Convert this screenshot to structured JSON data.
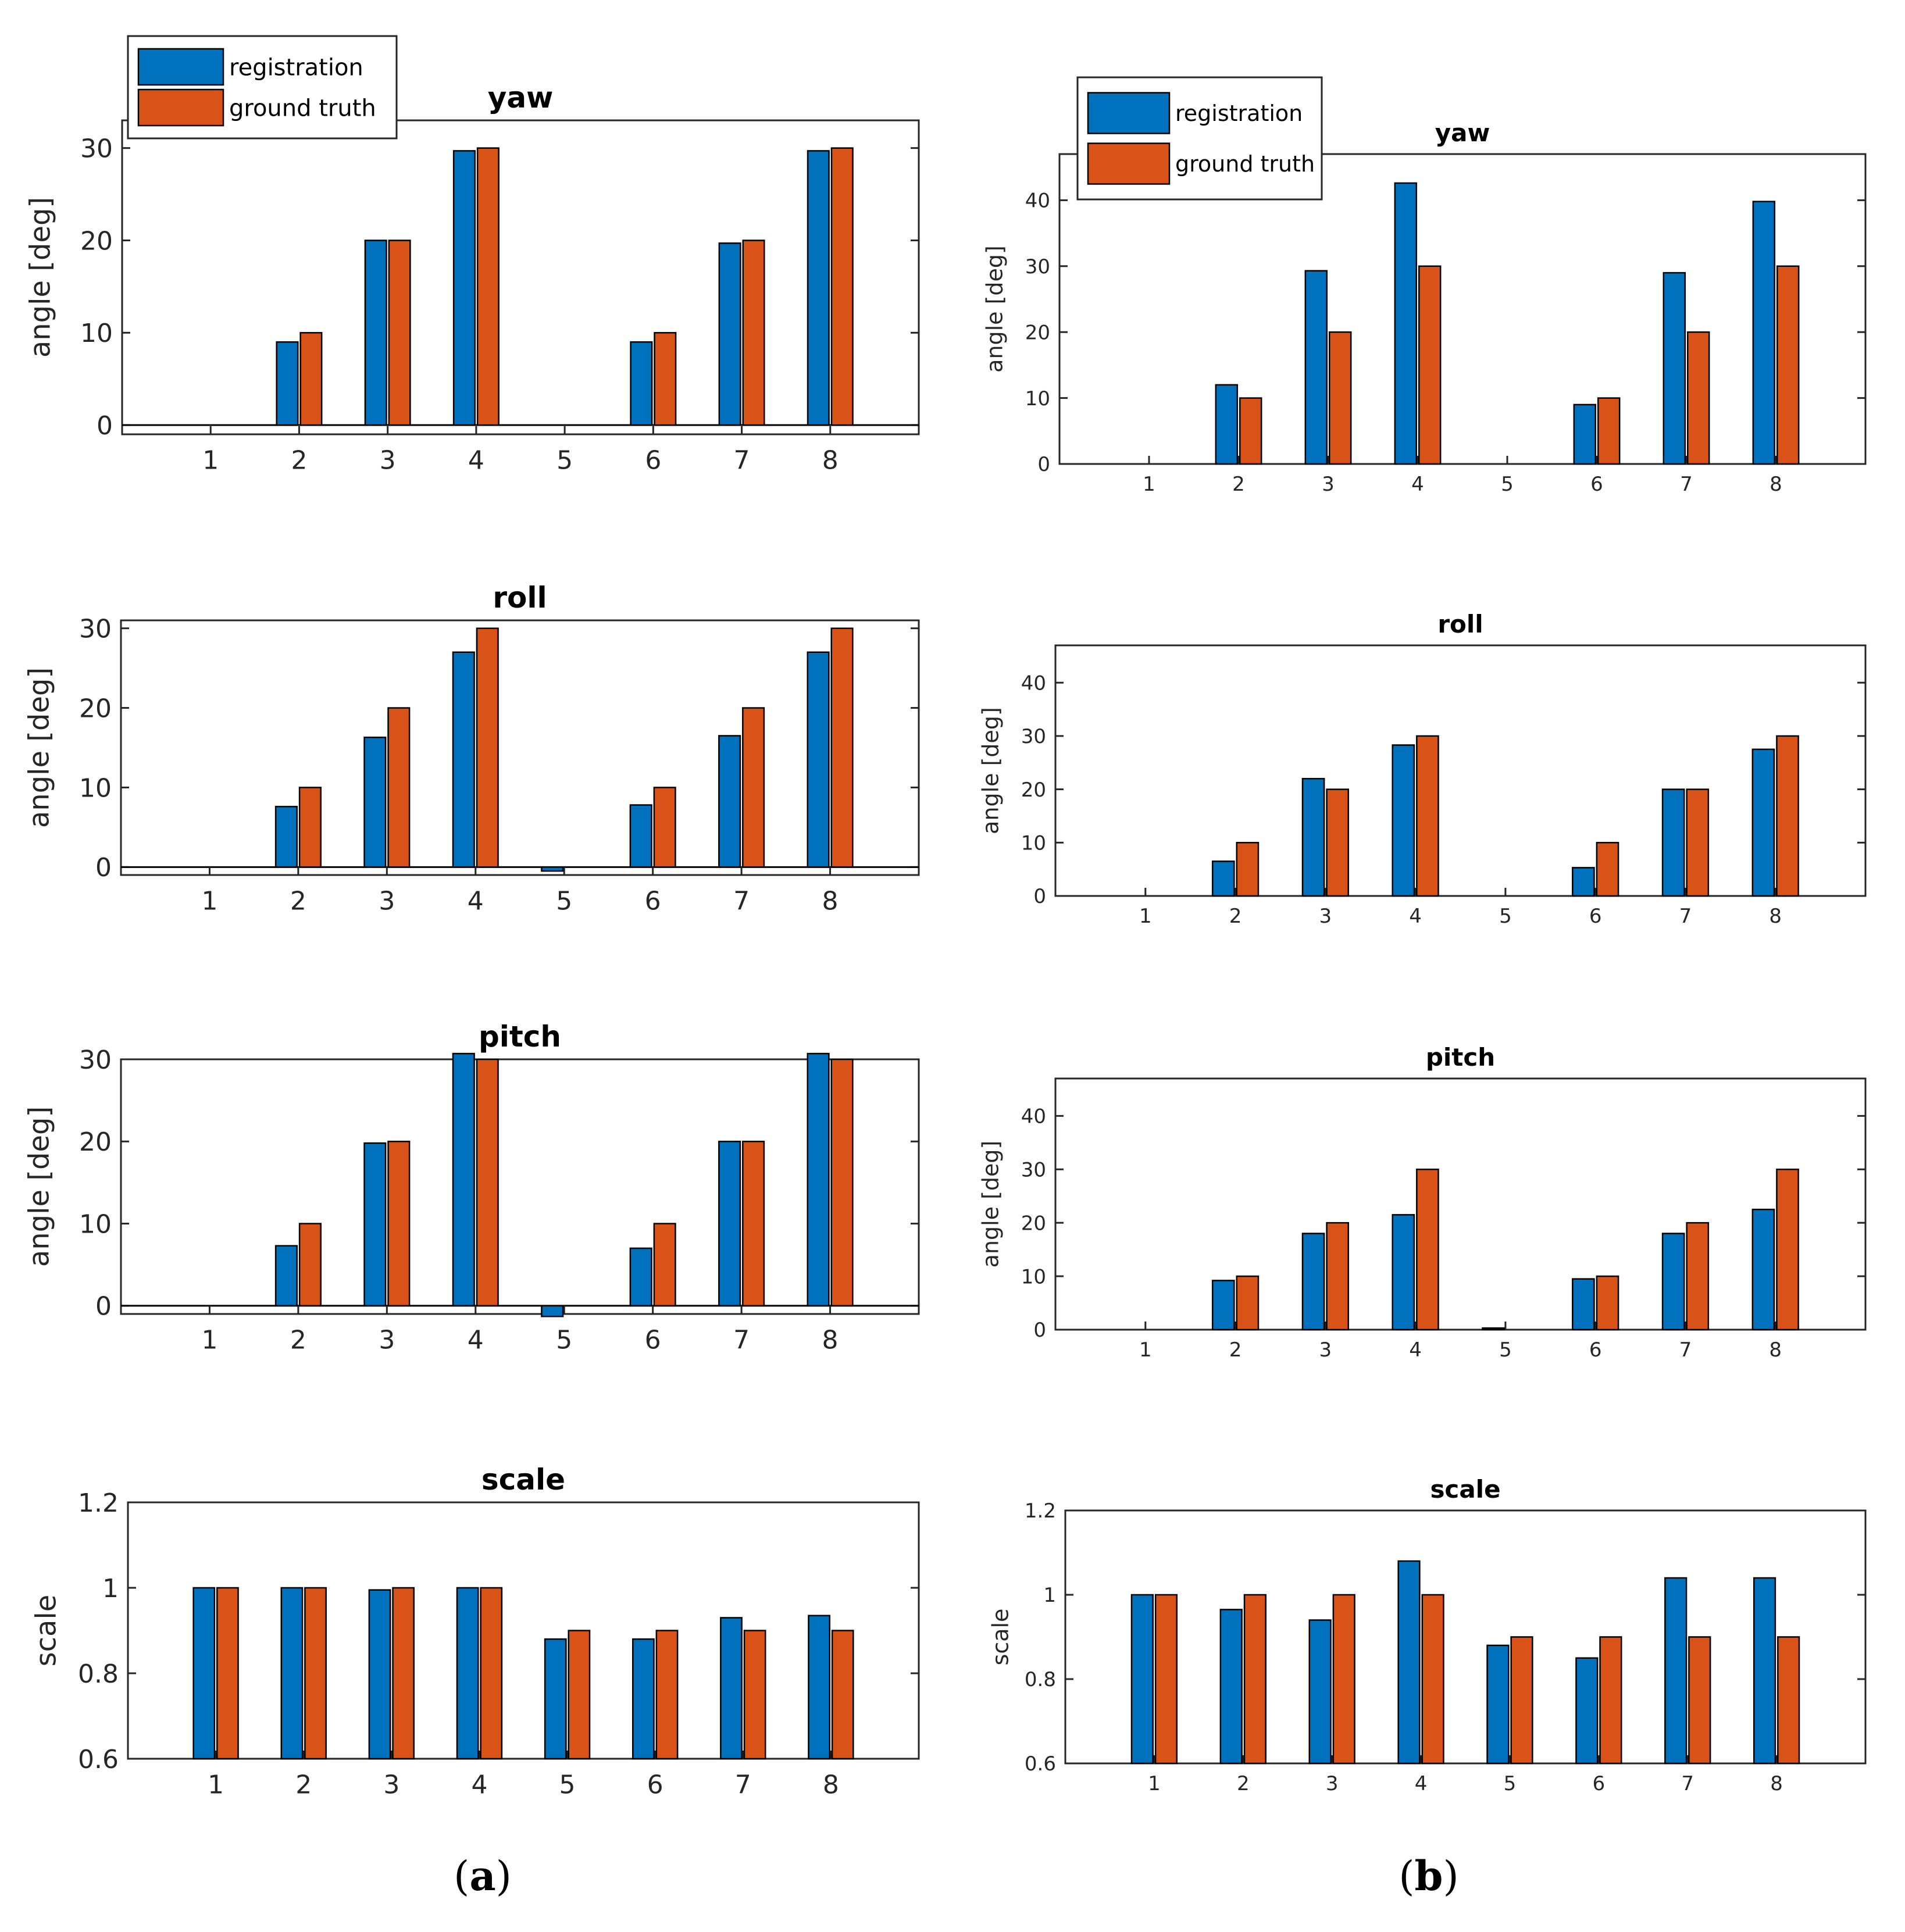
{
  "colors": {
    "registration": "#0072BD",
    "ground_truth": "#D95319",
    "axis": "#262626"
  },
  "panels": [
    {
      "label_open": "(",
      "label_letter": "a",
      "label_close": ")"
    },
    {
      "label_open": "(",
      "label_letter": "b",
      "label_close": ")"
    }
  ],
  "chart_data": [
    {
      "panel": "a",
      "type": "bar",
      "title": "yaw",
      "xlabel": "",
      "ylabel": "angle [deg]",
      "categories": [
        "1",
        "2",
        "3",
        "4",
        "5",
        "6",
        "7",
        "8"
      ],
      "ylim": [
        -1,
        33
      ],
      "yticks": [
        0,
        10,
        20,
        30
      ],
      "ytick_labels": [
        "0",
        "10",
        "20",
        "30"
      ],
      "legend": {
        "entries": [
          "registration",
          "ground truth"
        ],
        "placement": "top-left"
      },
      "series": [
        {
          "name": "registration",
          "values": [
            0,
            9,
            20,
            29.7,
            0,
            9,
            19.7,
            29.7
          ]
        },
        {
          "name": "ground truth",
          "values": [
            0,
            10,
            20,
            30,
            0,
            10,
            20,
            30
          ]
        }
      ]
    },
    {
      "panel": "a",
      "type": "bar",
      "title": "roll",
      "xlabel": "",
      "ylabel": "angle [deg]",
      "categories": [
        "1",
        "2",
        "3",
        "4",
        "5",
        "6",
        "7",
        "8"
      ],
      "ylim": [
        -1,
        31
      ],
      "yticks": [
        0,
        10,
        20,
        30
      ],
      "ytick_labels": [
        "0",
        "10",
        "20",
        "30"
      ],
      "series": [
        {
          "name": "registration",
          "values": [
            0,
            7.6,
            16.3,
            27,
            -0.5,
            7.8,
            16.5,
            27
          ]
        },
        {
          "name": "ground truth",
          "values": [
            0,
            10,
            20,
            30,
            0,
            10,
            20,
            30
          ]
        }
      ]
    },
    {
      "panel": "a",
      "type": "bar",
      "title": "pitch",
      "xlabel": "",
      "ylabel": "angle [deg]",
      "categories": [
        "1",
        "2",
        "3",
        "4",
        "5",
        "6",
        "7",
        "8"
      ],
      "ylim": [
        -1,
        30
      ],
      "yticks": [
        0,
        10,
        20,
        30
      ],
      "ytick_labels": [
        "0",
        "10",
        "20",
        "30"
      ],
      "series": [
        {
          "name": "registration",
          "values": [
            0,
            7.3,
            19.8,
            30.7,
            -1.3,
            7,
            20,
            30.7
          ]
        },
        {
          "name": "ground truth",
          "values": [
            0,
            10,
            20,
            30,
            0,
            10,
            20,
            30
          ]
        }
      ]
    },
    {
      "panel": "a",
      "type": "bar",
      "title": "scale",
      "xlabel": "",
      "ylabel": "scale",
      "categories": [
        "1",
        "2",
        "3",
        "4",
        "5",
        "6",
        "7",
        "8"
      ],
      "ylim": [
        0.6,
        1.2
      ],
      "yticks": [
        0.6,
        0.8,
        1,
        1.2
      ],
      "ytick_labels": [
        "0.6",
        "0.8",
        "1",
        "1.2"
      ],
      "series": [
        {
          "name": "registration",
          "values": [
            1,
            1,
            0.995,
            1,
            0.88,
            0.88,
            0.93,
            0.935
          ]
        },
        {
          "name": "ground truth",
          "values": [
            1,
            1,
            1,
            1,
            0.9,
            0.9,
            0.9,
            0.9
          ]
        }
      ]
    },
    {
      "panel": "b",
      "type": "bar",
      "title": "yaw",
      "xlabel": "",
      "ylabel": "angle [deg]",
      "categories": [
        "1",
        "2",
        "3",
        "4",
        "5",
        "6",
        "7",
        "8"
      ],
      "ylim": [
        0,
        47
      ],
      "yticks": [
        0,
        10,
        20,
        30,
        40
      ],
      "ytick_labels": [
        "0",
        "10",
        "20",
        "30",
        "40"
      ],
      "legend": {
        "entries": [
          "registration",
          "ground truth"
        ],
        "placement": "top-left"
      },
      "series": [
        {
          "name": "registration",
          "values": [
            0,
            12,
            29.3,
            42.6,
            0,
            9,
            29,
            39.8
          ]
        },
        {
          "name": "ground truth",
          "values": [
            0,
            10,
            20,
            30,
            0,
            10,
            20,
            30
          ]
        }
      ]
    },
    {
      "panel": "b",
      "type": "bar",
      "title": "roll",
      "xlabel": "",
      "ylabel": "angle [deg]",
      "categories": [
        "1",
        "2",
        "3",
        "4",
        "5",
        "6",
        "7",
        "8"
      ],
      "ylim": [
        0,
        47
      ],
      "yticks": [
        0,
        10,
        20,
        30,
        40
      ],
      "ytick_labels": [
        "0",
        "10",
        "20",
        "30",
        "40"
      ],
      "series": [
        {
          "name": "registration",
          "values": [
            0,
            6.5,
            22,
            28.3,
            0,
            5.3,
            20,
            27.5
          ]
        },
        {
          "name": "ground truth",
          "values": [
            0,
            10,
            20,
            30,
            0,
            10,
            20,
            30
          ]
        }
      ]
    },
    {
      "panel": "b",
      "type": "bar",
      "title": "pitch",
      "xlabel": "",
      "ylabel": "angle [deg]",
      "categories": [
        "1",
        "2",
        "3",
        "4",
        "5",
        "6",
        "7",
        "8"
      ],
      "ylim": [
        0,
        47
      ],
      "yticks": [
        0,
        10,
        20,
        30,
        40
      ],
      "ytick_labels": [
        "0",
        "10",
        "20",
        "30",
        "40"
      ],
      "series": [
        {
          "name": "registration",
          "values": [
            0,
            9.2,
            18,
            21.5,
            0.3,
            9.5,
            18,
            22.5
          ]
        },
        {
          "name": "ground truth",
          "values": [
            0,
            10,
            20,
            30,
            0,
            10,
            20,
            30
          ]
        }
      ]
    },
    {
      "panel": "b",
      "type": "bar",
      "title": "scale",
      "xlabel": "",
      "ylabel": "scale",
      "categories": [
        "1",
        "2",
        "3",
        "4",
        "5",
        "6",
        "7",
        "8"
      ],
      "ylim": [
        0.6,
        1.2
      ],
      "yticks": [
        0.6,
        0.8,
        1,
        1.2
      ],
      "ytick_labels": [
        "0.6",
        "0.8",
        "1",
        "1.2"
      ],
      "series": [
        {
          "name": "registration",
          "values": [
            1,
            0.965,
            0.94,
            1.08,
            0.88,
            0.85,
            1.04,
            1.04
          ]
        },
        {
          "name": "ground truth",
          "values": [
            1,
            1,
            1,
            1,
            0.9,
            0.9,
            0.9,
            0.9
          ]
        }
      ]
    }
  ]
}
